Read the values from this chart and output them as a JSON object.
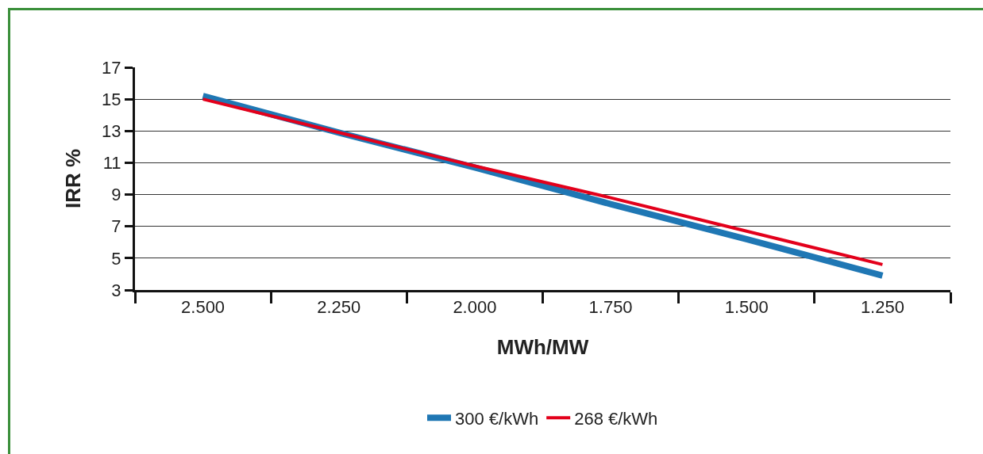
{
  "chart_data": {
    "type": "line",
    "xlabel": "MWh/MW",
    "ylabel": "IRR %",
    "categories": [
      "2.500",
      "2.250",
      "2.000",
      "1.750",
      "1.500",
      "1.250"
    ],
    "series": [
      {
        "name": "300 €/kWh",
        "color": "#1f77b4",
        "values": [
          15.2,
          12.9,
          10.7,
          8.4,
          6.2,
          3.9
        ]
      },
      {
        "name": "268 €/kWh",
        "color": "#e3001b",
        "values": [
          15.0,
          12.9,
          10.8,
          8.8,
          6.7,
          4.6
        ]
      }
    ],
    "ylim": [
      3,
      17
    ],
    "yticks": [
      3,
      5,
      7,
      9,
      11,
      13,
      15,
      17
    ],
    "grid": "y",
    "legend": "bottom",
    "marker": "none",
    "line_style": "solid"
  }
}
